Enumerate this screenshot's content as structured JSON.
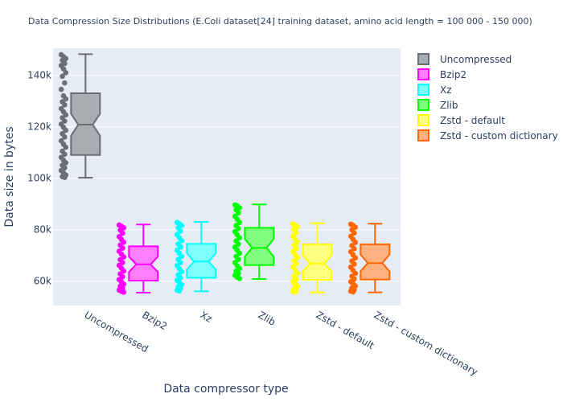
{
  "chart_data": {
    "type": "box",
    "title": "Data Compression Size Distributions (E.Coli dataset[24] training dataset, amino acid length = 100 000 - 150 000)",
    "xlabel": "Data compressor type",
    "ylabel": "Data size in bytes",
    "y_ticks": [
      "60k",
      "80k",
      "100k",
      "120k",
      "140k"
    ],
    "y_tick_values": [
      60000,
      80000,
      100000,
      120000,
      140000
    ],
    "ylim": [
      50500,
      150500
    ],
    "grid": true,
    "legend_position": "top-right",
    "plot_background": "#e5ecf6",
    "categories": [
      "Uncompressed",
      "Bzip2",
      "Xz",
      "Zlib",
      "Zstd - default",
      "Zstd - custom dictionary"
    ],
    "series": [
      {
        "name": "Uncompressed",
        "color": "#6b6e72",
        "fill": "#a9acb0",
        "min": 100200,
        "q1": 109000,
        "median": 120800,
        "q3": 133000,
        "max": 148200,
        "notch_low": 116500,
        "notch_high": 125000,
        "points": [
          148000,
          147200,
          146500,
          145800,
          144600,
          143800,
          142500,
          141000,
          139600,
          137000,
          134500,
          132000,
          130800,
          129700,
          128500,
          127000,
          125800,
          124600,
          123500,
          122200,
          121000,
          119800,
          118600,
          117300,
          116000,
          114500,
          113200,
          112000,
          110500,
          109300,
          108100,
          107000,
          106000,
          105000,
          104000,
          103000,
          102000,
          101200,
          100600,
          100300
        ]
      },
      {
        "name": "Bzip2",
        "color": "#ff00ff",
        "fill": "#ff80ff",
        "min": 55500,
        "q1": 60200,
        "median": 66500,
        "q3": 73500,
        "max": 82000,
        "notch_low": 63500,
        "notch_high": 69500,
        "points": [
          81800,
          81300,
          80700,
          79800,
          78600,
          77300,
          76200,
          75100,
          74000,
          72800,
          71600,
          70500,
          69400,
          68300,
          67200,
          66100,
          65000,
          63900,
          62800,
          61700,
          60600,
          59700,
          58800,
          58000,
          57200,
          56500,
          56000,
          55700
        ]
      },
      {
        "name": "Xz",
        "color": "#00ffff",
        "fill": "#80ffff",
        "min": 56000,
        "q1": 61300,
        "median": 67600,
        "q3": 74500,
        "max": 83000,
        "notch_low": 64500,
        "notch_high": 70800,
        "points": [
          82800,
          82300,
          81600,
          80700,
          79400,
          78100,
          76900,
          75700,
          74400,
          73200,
          72000,
          70800,
          69600,
          68400,
          67200,
          66000,
          64800,
          63600,
          62400,
          61300,
          60300,
          59400,
          58600,
          57800,
          57100,
          56500,
          56200
        ]
      },
      {
        "name": "Zlib",
        "color": "#00ff00",
        "fill": "#80ff80",
        "min": 60800,
        "q1": 66200,
        "median": 72900,
        "q3": 80700,
        "max": 89800,
        "notch_low": 69500,
        "notch_high": 76400,
        "points": [
          89600,
          89200,
          88500,
          87700,
          86500,
          85200,
          84000,
          82800,
          81600,
          80400,
          79200,
          78000,
          76800,
          75600,
          74400,
          73200,
          72000,
          70800,
          69600,
          68400,
          67200,
          66000,
          64900,
          63900,
          63000,
          62200,
          61500,
          61000
        ]
      },
      {
        "name": "Zstd - default",
        "color": "#ffff00",
        "fill": "#ffff80",
        "min": 55600,
        "q1": 60500,
        "median": 66800,
        "q3": 74300,
        "max": 82500,
        "notch_low": 63700,
        "notch_high": 70200,
        "points": [
          82200,
          81700,
          81000,
          80000,
          78800,
          77500,
          76300,
          75100,
          73900,
          72700,
          71500,
          70300,
          69100,
          67900,
          66700,
          65500,
          64300,
          63100,
          61900,
          60800,
          59800,
          58900,
          58000,
          57200,
          56500,
          56000,
          55700
        ]
      },
      {
        "name": "Zstd - custom dictionary",
        "color": "#ff6600",
        "fill": "#ffb280",
        "min": 55600,
        "q1": 60600,
        "median": 67000,
        "q3": 74300,
        "max": 82300,
        "notch_low": 63800,
        "notch_high": 70300,
        "points": [
          82100,
          81600,
          80900,
          79900,
          78700,
          77400,
          76200,
          75000,
          73800,
          72600,
          71400,
          70200,
          69000,
          67800,
          66600,
          65400,
          64200,
          63000,
          61900,
          60800,
          59800,
          58900,
          58100,
          57300,
          56600,
          56100,
          55800
        ]
      }
    ]
  }
}
